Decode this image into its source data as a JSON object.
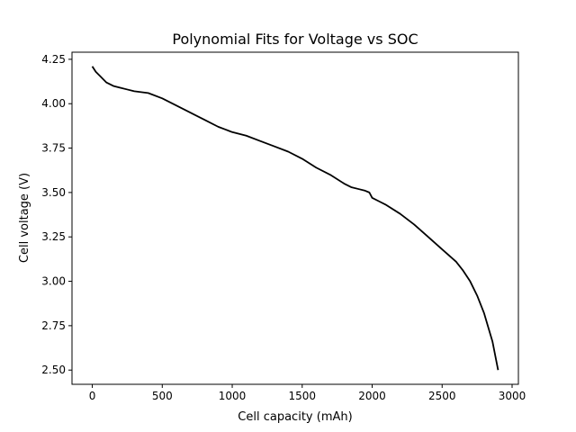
{
  "chart_data": {
    "type": "line",
    "title": "Polynomial Fits for Voltage vs SOC",
    "xlabel": "Cell capacity (mAh)",
    "ylabel": "Cell voltage (V)",
    "xlim": [
      -145,
      3045
    ],
    "ylim": [
      2.42,
      4.29
    ],
    "xticks": [
      0,
      500,
      1000,
      1500,
      2000,
      2500,
      3000
    ],
    "xtick_labels": [
      "0",
      "500",
      "1000",
      "1500",
      "2000",
      "2500",
      "3000"
    ],
    "yticks": [
      2.5,
      2.75,
      3.0,
      3.25,
      3.5,
      3.75,
      4.0,
      4.25
    ],
    "ytick_labels": [
      "2.50",
      "2.75",
      "3.00",
      "3.25",
      "3.50",
      "3.75",
      "4.00",
      "4.25"
    ],
    "grid": false,
    "series": [
      {
        "color": "#000000",
        "x": [
          0,
          25,
          50,
          100,
          150,
          200,
          250,
          300,
          400,
          500,
          600,
          700,
          800,
          900,
          950,
          1000,
          1100,
          1200,
          1300,
          1400,
          1500,
          1600,
          1700,
          1800,
          1850,
          1900,
          1950,
          1980,
          2000,
          2050,
          2100,
          2200,
          2300,
          2400,
          2500,
          2600,
          2650,
          2700,
          2750,
          2800,
          2830,
          2860,
          2880,
          2900
        ],
        "y": [
          4.21,
          4.18,
          4.16,
          4.12,
          4.1,
          4.09,
          4.08,
          4.07,
          4.06,
          4.03,
          3.99,
          3.95,
          3.91,
          3.87,
          3.855,
          3.84,
          3.82,
          3.79,
          3.76,
          3.73,
          3.69,
          3.64,
          3.6,
          3.55,
          3.53,
          3.52,
          3.51,
          3.5,
          3.47,
          3.45,
          3.43,
          3.38,
          3.32,
          3.25,
          3.18,
          3.11,
          3.06,
          3.0,
          2.92,
          2.82,
          2.74,
          2.66,
          2.58,
          2.5
        ]
      }
    ]
  }
}
